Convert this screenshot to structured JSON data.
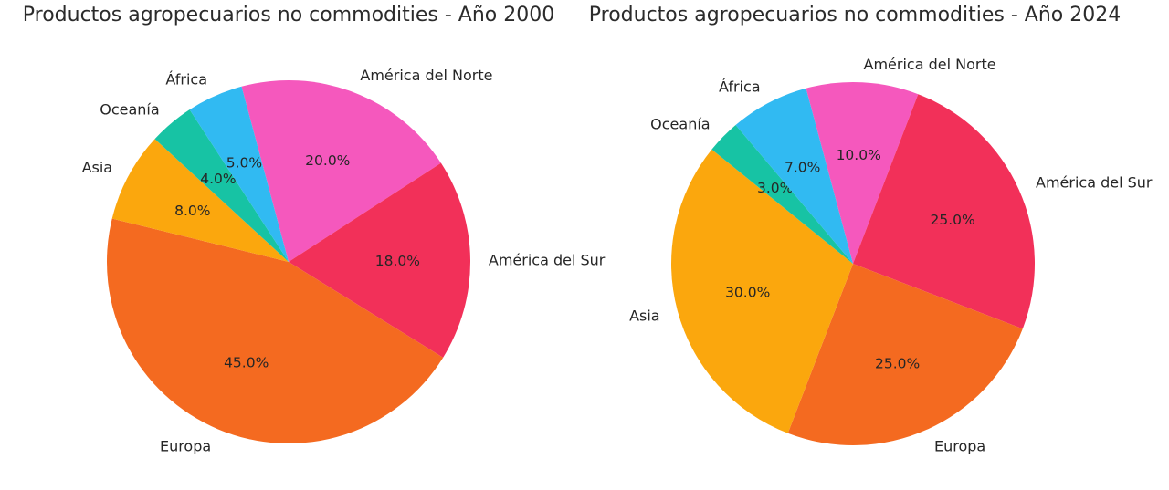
{
  "chart_data": [
    {
      "type": "pie",
      "title": "Productos agropecuarios no commodities - Año 2000",
      "categories": [
        "América del Norte",
        "América del Sur",
        "Europa",
        "Asia",
        "Oceanía",
        "África"
      ],
      "values": [
        20.0,
        18.0,
        45.0,
        8.0,
        4.0,
        5.0
      ],
      "autopct": [
        "20.0%",
        "18.0%",
        "45.0%",
        "8.0%",
        "4.0%",
        "5.0%"
      ],
      "colors": [
        "#f558bd",
        "#f23059",
        "#f46a20",
        "#fba70d",
        "#17c3a4",
        "#31baf2"
      ],
      "startangle": 105,
      "direction": "clockwise",
      "labeldistance": 1.1,
      "pctdistance": 0.6,
      "legend": "none"
    },
    {
      "type": "pie",
      "title": "Productos agropecuarios no commodities - Año 2024",
      "categories": [
        "América del Norte",
        "América del Sur",
        "Europa",
        "Asia",
        "Oceanía",
        "África"
      ],
      "values": [
        10.0,
        25.0,
        25.0,
        30.0,
        3.0,
        7.0
      ],
      "autopct": [
        "10.0%",
        "25.0%",
        "25.0%",
        "30.0%",
        "3.0%",
        "7.0%"
      ],
      "colors": [
        "#f558bd",
        "#f23059",
        "#f46a20",
        "#fba70d",
        "#17c3a4",
        "#31baf2"
      ],
      "startangle": 105,
      "direction": "clockwise",
      "labeldistance": 1.1,
      "pctdistance": 0.6,
      "legend": "none"
    }
  ]
}
